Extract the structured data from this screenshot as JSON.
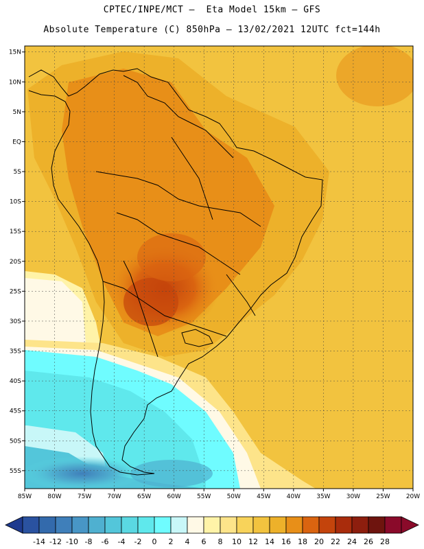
{
  "header": {
    "line1": "CPTEC/INPE/MCT –  Eta Model 15km – GFS",
    "line2": "Absolute Temperature (C) 850hPa – 13/02/2021 12UTC fct=144h"
  },
  "map": {
    "lat_labels": [
      "15N",
      "10N",
      "5N",
      "EQ",
      "5S",
      "10S",
      "15S",
      "20S",
      "25S",
      "30S",
      "35S",
      "40S",
      "45S",
      "50S",
      "55S"
    ],
    "lon_labels": [
      "85W",
      "80W",
      "75W",
      "70W",
      "65W",
      "60W",
      "55W",
      "50W",
      "45W",
      "40W",
      "35W",
      "30W",
      "25W",
      "20W"
    ],
    "lon_range": [
      -85,
      -20
    ],
    "lat_range": [
      -58,
      16
    ],
    "field": "Absolute Temperature (C) 850hPa"
  },
  "colorbar": {
    "labels": [
      "-14",
      "-12",
      "-10",
      "-8",
      "-6",
      "-4",
      "-2",
      "0",
      "2",
      "4",
      "6",
      "8",
      "10",
      "12",
      "14",
      "16",
      "18",
      "20",
      "22",
      "24",
      "26",
      "28"
    ],
    "colors": [
      "#1e3a8f",
      "#2a52a0",
      "#336aac",
      "#3f7fba",
      "#4896c6",
      "#4fb0d0",
      "#53c6da",
      "#5ad8e2",
      "#5fe8ec",
      "#6ffcff",
      "#c8f7f8",
      "#fff9e6",
      "#fff3a8",
      "#fde48a",
      "#f8d35a",
      "#f2c33f",
      "#edb12a",
      "#e88f18",
      "#da6410",
      "#c4440c",
      "#a92c0c",
      "#8d1e0e",
      "#6e140e",
      "#8a0a2a"
    ]
  }
}
